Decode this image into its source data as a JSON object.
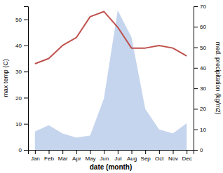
{
  "chart_data": {
    "type": "line",
    "xlabel": "date (month)",
    "ylabel": "max temp (C)",
    "y2label": "med. precipitation (kg/m2)",
    "categories": [
      "Jan",
      "Feb",
      "Mar",
      "Apr",
      "May",
      "Jun",
      "Jul",
      "Aug",
      "Sep",
      "Oct",
      "Nov",
      "Dec"
    ],
    "series": [
      {
        "type": "area",
        "axis": "y2",
        "color": "#c5d5ee",
        "values": [
          9,
          12,
          8,
          6,
          7,
          25,
          68,
          55,
          20,
          10,
          8,
          13
        ]
      },
      {
        "type": "line",
        "color": "#c0514d",
        "values": [
          33,
          35,
          40,
          43,
          51,
          53,
          47,
          39,
          39,
          40,
          39,
          36
        ]
      }
    ],
    "ylim": [
      0,
      55
    ],
    "yticks": [
      0,
      10,
      20,
      30,
      40,
      50
    ],
    "y2lim": [
      0,
      70
    ],
    "y2ticks": [
      0,
      10,
      20,
      30,
      40,
      50,
      60,
      70
    ],
    "grid": false
  }
}
